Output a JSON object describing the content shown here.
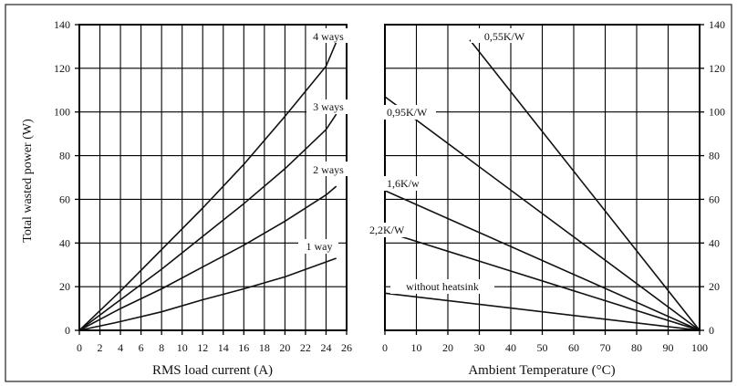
{
  "chart_data": [
    {
      "type": "line",
      "title": "",
      "xlabel": "RMS load current (A)",
      "ylabel": "Total wasted power (W)",
      "xlim": [
        0,
        26
      ],
      "ylim": [
        0,
        140
      ],
      "x_ticks": [
        "0",
        "2",
        "4",
        "6",
        "8",
        "10",
        "12",
        "14",
        "16",
        "18",
        "20",
        "22",
        "24",
        "26"
      ],
      "y_ticks": [
        "0",
        "20",
        "40",
        "60",
        "80",
        "100",
        "120",
        "140"
      ],
      "grid": true,
      "series": [
        {
          "name": "1 way",
          "points": [
            [
              0,
              0
            ],
            [
              4,
              4
            ],
            [
              8,
              8.5
            ],
            [
              12,
              14
            ],
            [
              16,
              19
            ],
            [
              20,
              24.5
            ],
            [
              25,
              33
            ]
          ]
        },
        {
          "name": "2 ways",
          "points": [
            [
              0,
              0
            ],
            [
              4,
              10
            ],
            [
              8,
              19
            ],
            [
              12,
              29
            ],
            [
              16,
              39
            ],
            [
              20,
              50
            ],
            [
              24,
              62
            ],
            [
              25,
              66
            ]
          ]
        },
        {
          "name": "3 ways",
          "points": [
            [
              0,
              0
            ],
            [
              4,
              14
            ],
            [
              8,
              28
            ],
            [
              12,
              43
            ],
            [
              16,
              58
            ],
            [
              20,
              74
            ],
            [
              24,
              92
            ],
            [
              25,
              99
            ]
          ]
        },
        {
          "name": "4 ways",
          "points": [
            [
              0,
              0
            ],
            [
              4,
              18
            ],
            [
              8,
              37
            ],
            [
              12,
              56
            ],
            [
              16,
              76
            ],
            [
              20,
              98
            ],
            [
              24,
              121
            ],
            [
              25,
              132
            ]
          ]
        }
      ]
    },
    {
      "type": "line",
      "title": "",
      "xlabel": "Ambient Temperature (°C)",
      "ylabel": "",
      "xlim": [
        0,
        100
      ],
      "ylim": [
        0,
        140
      ],
      "x_ticks": [
        "0",
        "10",
        "20",
        "30",
        "40",
        "50",
        "60",
        "70",
        "80",
        "90",
        "100"
      ],
      "y_ticks": [
        "0",
        "20",
        "40",
        "60",
        "80",
        "100",
        "120",
        "140"
      ],
      "grid": true,
      "series": [
        {
          "name": "0,55K/W",
          "points": [
            [
              27,
              133
            ],
            [
              100,
              0
            ]
          ]
        },
        {
          "name": "0,95K/W",
          "points": [
            [
              0,
              107
            ],
            [
              100,
              0
            ]
          ]
        },
        {
          "name": "1,6K/w",
          "points": [
            [
              0,
              64
            ],
            [
              100,
              0
            ]
          ]
        },
        {
          "name": "2,2K/W",
          "points": [
            [
              5,
              43
            ],
            [
              100,
              0
            ]
          ]
        },
        {
          "name": "without heatsink",
          "points": [
            [
              0,
              17
            ],
            [
              100,
              0
            ]
          ]
        }
      ]
    }
  ]
}
